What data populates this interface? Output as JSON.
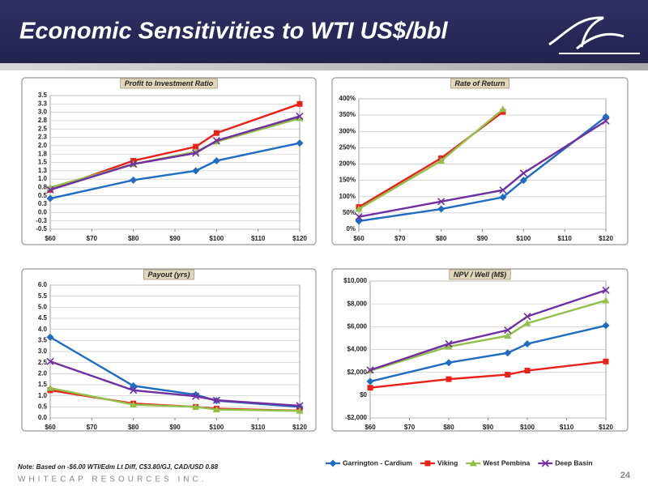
{
  "header": {
    "title": "Economic Sensitivities to WTI US$/bbl"
  },
  "footer": {
    "note": "Note: Based on -$6.00 WTI/Edm Lt Diff, C$3.80/GJ, CAD/USD 0.88",
    "company": "WHITECAP RESOURCES INC.",
    "page": "24"
  },
  "chart_data": [
    {
      "type": "line",
      "title": "Profit to Investment Ratio",
      "x": [
        60,
        80,
        95,
        100,
        120
      ],
      "xlim": [
        60,
        120
      ],
      "xticks": [
        {
          "value": 60,
          "label": "$60"
        },
        {
          "value": 70,
          "label": "$70"
        },
        {
          "value": 80,
          "label": "$80"
        },
        {
          "value": 90,
          "label": "$90"
        },
        {
          "value": 100,
          "label": "$100"
        },
        {
          "value": 110,
          "label": "$110"
        },
        {
          "value": 120,
          "label": "$120"
        }
      ],
      "ylim": [
        -0.5,
        3.5
      ],
      "yticks": [
        -0.5,
        {
          "value": -0.25,
          "label": "-0.3"
        },
        {
          "value": 0,
          "label": "0.0"
        },
        {
          "value": 0.25,
          "label": "0.3"
        },
        0.5,
        {
          "value": 0.75,
          "label": "0.8"
        },
        {
          "value": 1,
          "label": "1.0"
        },
        {
          "value": 1.25,
          "label": "1.3"
        },
        1.5,
        {
          "value": 1.75,
          "label": "1.8"
        },
        {
          "value": 2,
          "label": "2.0"
        },
        {
          "value": 2.25,
          "label": "2.3"
        },
        2.5,
        {
          "value": 2.75,
          "label": "2.8"
        },
        {
          "value": 3,
          "label": "3.0"
        },
        {
          "value": 3.25,
          "label": "3.3"
        },
        3.5
      ],
      "grid": true,
      "series": [
        {
          "color": "#1f6cc0",
          "values": [
            0.42,
            0.97,
            1.25,
            1.55,
            2.08
          ]
        },
        {
          "color": "#e8211a",
          "values": [
            0.68,
            1.55,
            1.97,
            2.38,
            3.25
          ]
        },
        {
          "color": "#92c04a",
          "values": [
            0.75,
            1.45,
            1.82,
            2.12,
            2.82
          ]
        },
        {
          "color": "#7030a0",
          "values": [
            0.68,
            1.45,
            1.78,
            2.15,
            2.88
          ]
        }
      ]
    },
    {
      "type": "line",
      "title": "Rate of Return",
      "x": [
        60,
        80,
        95,
        100,
        120
      ],
      "xlim": [
        60,
        120
      ],
      "xticks": [
        {
          "value": 60,
          "label": "$60"
        },
        {
          "value": 70,
          "label": "$70"
        },
        {
          "value": 80,
          "label": "$80"
        },
        {
          "value": 90,
          "label": "$90"
        },
        {
          "value": 100,
          "label": "$100"
        },
        {
          "value": 110,
          "label": "$110"
        },
        {
          "value": 120,
          "label": "$120"
        }
      ],
      "ylim": [
        0,
        400
      ],
      "yticks": [
        {
          "value": 0,
          "label": "0%"
        },
        {
          "value": 50,
          "label": "50%"
        },
        {
          "value": 100,
          "label": "100%"
        },
        {
          "value": 150,
          "label": "150%"
        },
        {
          "value": 200,
          "label": "200%"
        },
        {
          "value": 250,
          "label": "250%"
        },
        {
          "value": 300,
          "label": "300%"
        },
        {
          "value": 350,
          "label": "350%"
        },
        {
          "value": 400,
          "label": "400%"
        }
      ],
      "grid": true,
      "series": [
        {
          "color": "#1f6cc0",
          "values": [
            25,
            62,
            98,
            150,
            345
          ]
        },
        {
          "color": "#e8211a",
          "values": [
            68,
            218,
            360,
            null,
            null
          ]
        },
        {
          "color": "#92c04a",
          "values": [
            62,
            210,
            368,
            null,
            null
          ]
        },
        {
          "color": "#7030a0",
          "values": [
            38,
            85,
            120,
            172,
            332
          ]
        }
      ]
    },
    {
      "type": "line",
      "title": "Payout (yrs)",
      "x": [
        60,
        80,
        95,
        100,
        120
      ],
      "xlim": [
        60,
        120
      ],
      "xticks": [
        {
          "value": 60,
          "label": "$60"
        },
        {
          "value": 70,
          "label": "$70"
        },
        {
          "value": 80,
          "label": "$80"
        },
        {
          "value": 90,
          "label": "$90"
        },
        {
          "value": 100,
          "label": "$100"
        },
        {
          "value": 110,
          "label": "$110"
        },
        {
          "value": 120,
          "label": "$120"
        }
      ],
      "ylim": [
        0,
        6
      ],
      "yticks": [
        {
          "value": 0,
          "label": "0.0"
        },
        0.5,
        {
          "value": 1,
          "label": "1.0"
        },
        1.5,
        {
          "value": 2,
          "label": "2.0"
        },
        2.5,
        {
          "value": 3,
          "label": "3.0"
        },
        3.5,
        {
          "value": 4,
          "label": "4.0"
        },
        4.5,
        {
          "value": 5,
          "label": "5.0"
        },
        5.5,
        {
          "value": 6,
          "label": "6.0"
        }
      ],
      "grid": true,
      "series": [
        {
          "color": "#1f6cc0",
          "values": [
            3.65,
            1.45,
            1.05,
            0.78,
            0.5
          ]
        },
        {
          "color": "#e8211a",
          "values": [
            1.25,
            0.65,
            0.5,
            0.42,
            0.33
          ]
        },
        {
          "color": "#92c04a",
          "values": [
            1.35,
            0.6,
            0.5,
            0.38,
            0.32
          ]
        },
        {
          "color": "#7030a0",
          "values": [
            2.55,
            1.25,
            0.98,
            0.8,
            0.55
          ]
        }
      ]
    },
    {
      "type": "line",
      "title": "NPV / Well (M$)",
      "x": [
        60,
        80,
        95,
        100,
        120
      ],
      "xlim": [
        60,
        120
      ],
      "xticks": [
        {
          "value": 60,
          "label": "$60"
        },
        {
          "value": 70,
          "label": "$70"
        },
        {
          "value": 80,
          "label": "$80"
        },
        {
          "value": 90,
          "label": "$90"
        },
        {
          "value": 100,
          "label": "$100"
        },
        {
          "value": 110,
          "label": "$110"
        },
        {
          "value": 120,
          "label": "$120"
        }
      ],
      "ylim": [
        -2000,
        10000
      ],
      "yticks": [
        {
          "value": -2000,
          "label": "-$2,000"
        },
        {
          "value": 0,
          "label": "$0"
        },
        {
          "value": 2000,
          "label": "$2,000"
        },
        {
          "value": 4000,
          "label": "$4,000"
        },
        {
          "value": 6000,
          "label": "$6,000"
        },
        {
          "value": 8000,
          "label": "$8,000"
        },
        {
          "value": 10000,
          "label": "$10,000"
        }
      ],
      "grid": true,
      "series": [
        {
          "name": "Garrington - Cardium",
          "color": "#1f6cc0",
          "values": [
            1200,
            2850,
            3700,
            4500,
            6100
          ]
        },
        {
          "name": "Viking",
          "color": "#e8211a",
          "values": [
            650,
            1400,
            1800,
            2150,
            2950
          ]
        },
        {
          "name": "West Pembina",
          "color": "#92c04a",
          "values": [
            2150,
            4250,
            5200,
            6300,
            8300
          ]
        },
        {
          "name": "Deep Basin",
          "color": "#7030a0",
          "values": [
            2200,
            4500,
            5700,
            6900,
            9200
          ]
        }
      ]
    }
  ]
}
